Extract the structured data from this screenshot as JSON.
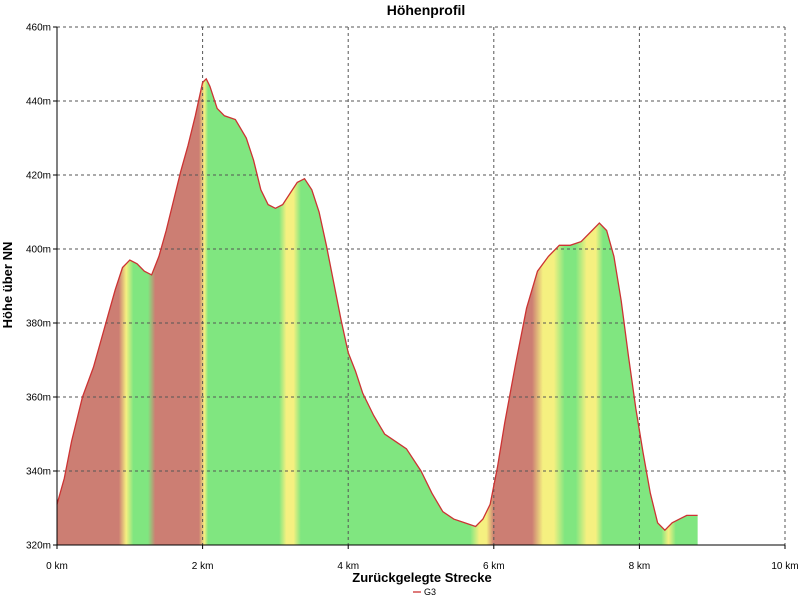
{
  "chart_data": {
    "type": "area",
    "title": "Höhenprofil",
    "xlabel": "Zurückgelegte Strecke",
    "ylabel": "Höhe über NN",
    "xlim": [
      0,
      10
    ],
    "ylim": [
      320,
      460
    ],
    "x_ticks": [
      0,
      2,
      4,
      6,
      8,
      10
    ],
    "x_tick_labels": [
      "0 km",
      "2 km",
      "4 km",
      "6 km",
      "8 km",
      "10 km"
    ],
    "y_ticks": [
      320,
      340,
      360,
      380,
      400,
      420,
      440,
      460
    ],
    "y_tick_labels": [
      "320m",
      "340m",
      "360m",
      "380m",
      "400m",
      "420m",
      "440m",
      "460m"
    ],
    "grid": true,
    "legend_position": "bottom",
    "series": [
      {
        "name": "G3",
        "line_color": "#cc3333",
        "x": [
          0.0,
          0.1,
          0.2,
          0.35,
          0.5,
          0.6,
          0.7,
          0.8,
          0.9,
          1.0,
          1.1,
          1.2,
          1.3,
          1.4,
          1.5,
          1.6,
          1.7,
          1.8,
          1.9,
          2.0,
          2.05,
          2.1,
          2.2,
          2.3,
          2.45,
          2.6,
          2.7,
          2.8,
          2.9,
          3.0,
          3.1,
          3.2,
          3.3,
          3.4,
          3.5,
          3.6,
          3.7,
          3.8,
          3.9,
          4.0,
          4.1,
          4.2,
          4.35,
          4.5,
          4.65,
          4.8,
          5.0,
          5.15,
          5.3,
          5.45,
          5.6,
          5.75,
          5.85,
          5.95,
          6.05,
          6.15,
          6.3,
          6.45,
          6.6,
          6.75,
          6.9,
          7.05,
          7.2,
          7.35,
          7.45,
          7.55,
          7.65,
          7.75,
          7.85,
          7.95,
          8.05,
          8.15,
          8.25,
          8.35,
          8.45,
          8.55,
          8.65,
          8.8
        ],
        "y": [
          331,
          338,
          348,
          360,
          368,
          375,
          382,
          389,
          395,
          397,
          396,
          394,
          393,
          398,
          405,
          413,
          421,
          428,
          436,
          445,
          446,
          444,
          438,
          436,
          435,
          430,
          424,
          416,
          412,
          411,
          412,
          415,
          418,
          419,
          416,
          410,
          401,
          391,
          381,
          372,
          367,
          361,
          355,
          350,
          348,
          346,
          340,
          334,
          329,
          327,
          326,
          325,
          327,
          331,
          341,
          353,
          369,
          384,
          394,
          398,
          401,
          401,
          402,
          405,
          407,
          405,
          398,
          386,
          371,
          357,
          345,
          334,
          326,
          324,
          326,
          327,
          328,
          328
        ],
        "gradient_color_mode": "slope"
      }
    ],
    "slope_colors": {
      "steep_up": "#cc7e73",
      "up": "#f5f080",
      "flat_or_down": "#80e680"
    }
  }
}
